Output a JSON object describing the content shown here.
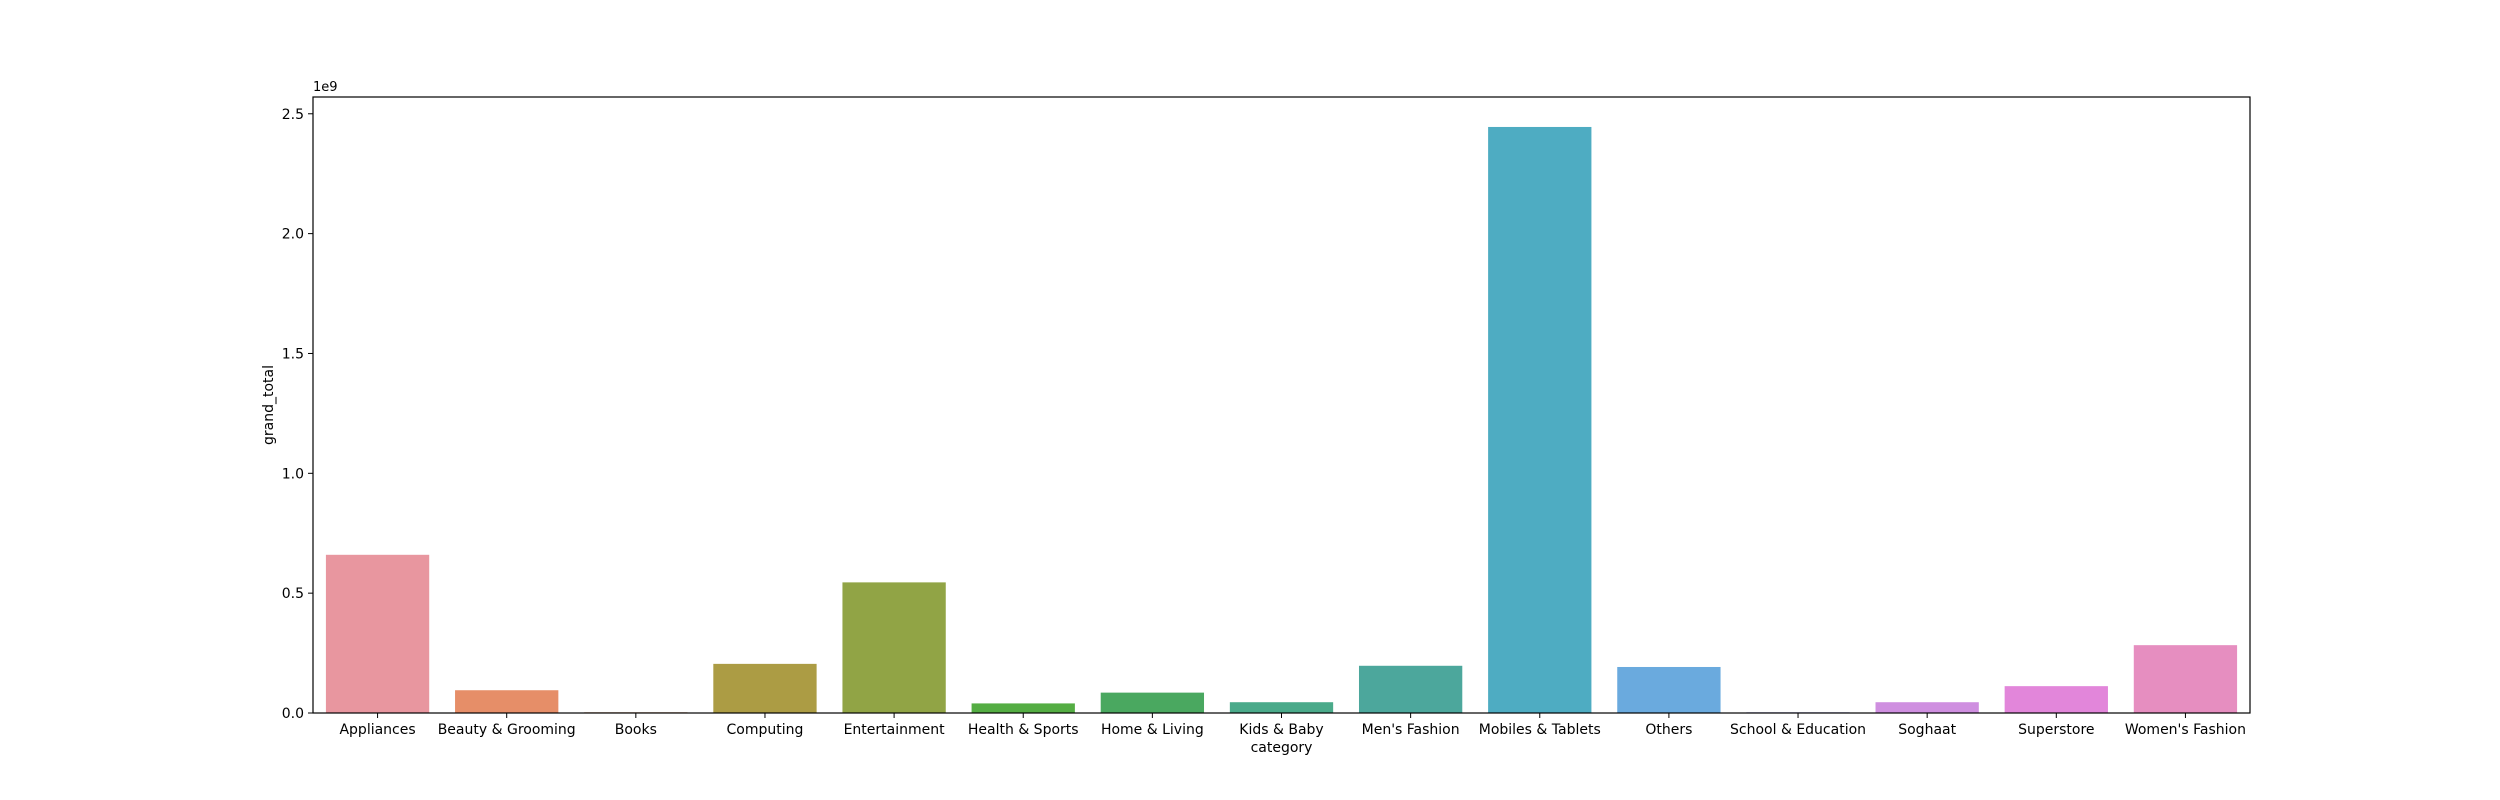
{
  "chart_data": {
    "type": "bar",
    "title": "",
    "xlabel": "category",
    "ylabel": "grand_total",
    "y_offset_label": "1e9",
    "ylim": [
      0,
      2.57
    ],
    "yticks": [
      0.0,
      0.5,
      1.0,
      1.5,
      2.0,
      2.5
    ],
    "ytick_labels": [
      "0.0",
      "0.5",
      "1.0",
      "1.5",
      "2.0",
      "2.5"
    ],
    "grid": false,
    "categories": [
      "Appliances",
      "Beauty & Grooming",
      "Books",
      "Computing",
      "Entertainment",
      "Health & Sports",
      "Home & Living",
      "Kids & Baby",
      "Men's Fashion",
      "Mobiles & Tablets",
      "Others",
      "School & Education",
      "Soghaat",
      "Superstore",
      "Women's Fashion"
    ],
    "values": [
      0.66,
      0.095,
      0.003,
      0.205,
      0.545,
      0.04,
      0.085,
      0.045,
      0.197,
      2.445,
      0.192,
      0.003,
      0.045,
      0.112,
      0.283
    ],
    "colors": [
      "#e8969f",
      "#e68e68",
      "#c9936b",
      "#ac9c44",
      "#91a445",
      "#54ad43",
      "#4aa860",
      "#4aaa8a",
      "#4ca79c",
      "#4eacc2",
      "#6aaade",
      "#9d9ae2",
      "#cf8fe0",
      "#e286da",
      "#e68ec0"
    ]
  }
}
